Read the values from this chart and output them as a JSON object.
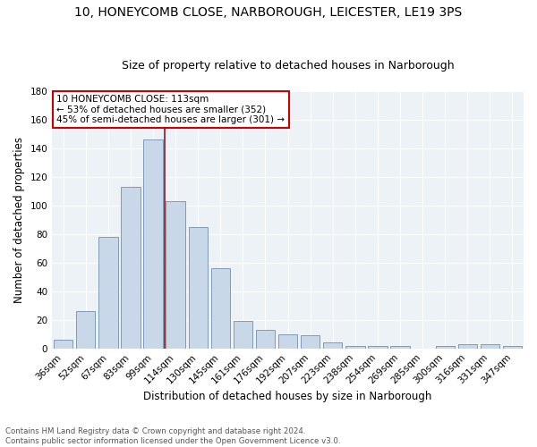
{
  "title": "10, HONEYCOMB CLOSE, NARBOROUGH, LEICESTER, LE19 3PS",
  "subtitle": "Size of property relative to detached houses in Narborough",
  "xlabel": "Distribution of detached houses by size in Narborough",
  "ylabel": "Number of detached properties",
  "categories": [
    "36sqm",
    "52sqm",
    "67sqm",
    "83sqm",
    "99sqm",
    "114sqm",
    "130sqm",
    "145sqm",
    "161sqm",
    "176sqm",
    "192sqm",
    "207sqm",
    "223sqm",
    "238sqm",
    "254sqm",
    "269sqm",
    "285sqm",
    "300sqm",
    "316sqm",
    "331sqm",
    "347sqm"
  ],
  "values": [
    6,
    26,
    78,
    113,
    146,
    103,
    85,
    56,
    19,
    13,
    10,
    9,
    4,
    2,
    2,
    2,
    0,
    2,
    3,
    3,
    2
  ],
  "bar_color": "#c8d8e8",
  "bar_edge_color": "#7090b0",
  "vline_x_index": 4.5,
  "vline_color": "#8b1a1a",
  "ylim": [
    0,
    180
  ],
  "yticks": [
    0,
    20,
    40,
    60,
    80,
    100,
    120,
    140,
    160,
    180
  ],
  "annotation_text": "10 HONEYCOMB CLOSE: 113sqm\n← 53% of detached houses are smaller (352)\n45% of semi-detached houses are larger (301) →",
  "annotation_box_color": "#ffffff",
  "annotation_box_edge": "#cc0000",
  "background_color": "#edf2f7",
  "footer_line1": "Contains HM Land Registry data © Crown copyright and database right 2024.",
  "footer_line2": "Contains public sector information licensed under the Open Government Licence v3.0.",
  "title_fontsize": 10,
  "subtitle_fontsize": 9,
  "ylabel_fontsize": 8.5,
  "xlabel_fontsize": 8.5,
  "tick_fontsize": 7.5,
  "annot_fontsize": 7.5,
  "footer_fontsize": 6.2
}
